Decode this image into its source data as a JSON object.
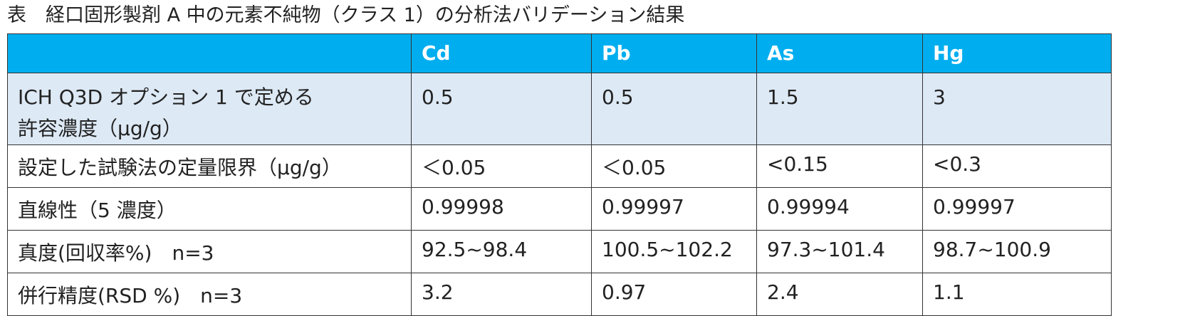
{
  "header": {
    "title": "表　経口固形製剤 A 中の元素不純物（クラス 1）の分析法バリデーション結果"
  },
  "table": {
    "columns": [
      "Cd",
      "Pb",
      "As",
      "Hg"
    ],
    "rows": [
      {
        "label": "ICH Q3D オプション 1 で定める\n許容濃度（μg/g）",
        "values": [
          "0.5",
          "0.5",
          "1.5",
          "3"
        ]
      },
      {
        "label": "設定した試験法の定量限界（μg/g）",
        "values": [
          "＜0.05",
          "＜0.05",
          "<0.15",
          "<0.3"
        ]
      },
      {
        "label": "直線性（5 濃度）",
        "values": [
          "0.99998",
          "0.99997",
          "0.99994",
          "0.99997"
        ]
      },
      {
        "label": "真度(回収率%)　n=3",
        "values": [
          "92.5~98.4",
          "100.5~102.2",
          "97.3~101.4",
          "98.7~100.9"
        ]
      },
      {
        "label": "併行精度(RSD %)　n=3",
        "values": [
          "3.2",
          "0.97",
          "2.4",
          "1.1"
        ]
      }
    ]
  }
}
